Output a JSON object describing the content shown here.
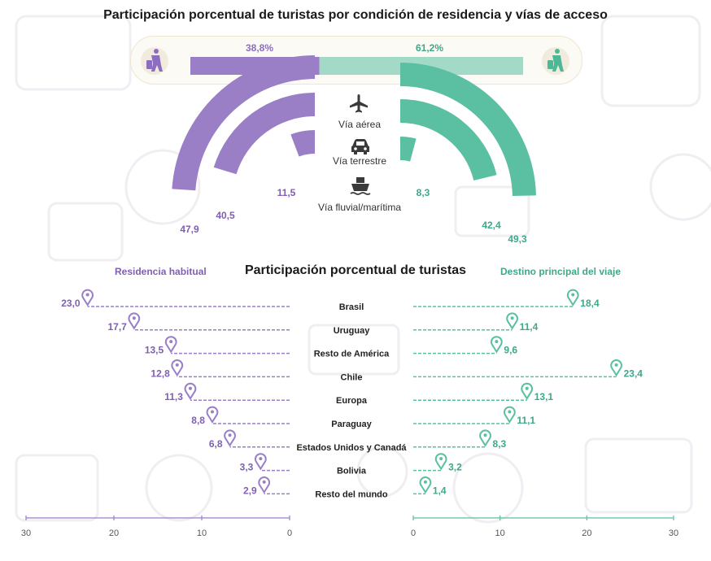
{
  "title": "Participación porcentual de turistas por condición de residencia y vías de acceso",
  "colors": {
    "purple": "#9a7fc6",
    "green": "#5bbfa1",
    "purple_text": "#7e5fb2",
    "green_text": "#3fa78a"
  },
  "residence_split": {
    "left": "38,8%",
    "right": "61,2%",
    "left_value": 38.8,
    "right_value": 61.2
  },
  "access": {
    "labels": [
      "Vía aérea",
      "Vía terrestre",
      "Vía fluvial/marítima"
    ],
    "icons": [
      "airplane-icon",
      "car-icon",
      "ship-icon"
    ],
    "left": {
      "values": [
        47.9,
        40.5,
        11.5
      ],
      "labels": [
        "47,9",
        "40,5",
        "11,5"
      ]
    },
    "right": {
      "values": [
        49.3,
        42.4,
        8.3
      ],
      "labels": [
        "49,3",
        "42,4",
        "8,3"
      ]
    }
  },
  "section2_title": "Participación porcentual de turistas",
  "left_series_label": "Residencia habitual",
  "right_series_label": "Destino principal del viaje",
  "chart_data": [
    {
      "type": "bar",
      "title": "Participación porcentual de turistas por condición de residencia y vías de acceso",
      "categories": [
        "Residencia habitual",
        "Destino principal del viaje"
      ],
      "values": [
        38.8,
        61.2
      ],
      "value_labels": [
        "38,8%",
        "61,2%"
      ]
    },
    {
      "type": "pie",
      "categories": [
        "Vía aérea",
        "Vía terrestre",
        "Vía fluvial/marítima"
      ],
      "series": [
        {
          "values": [
            47.9,
            40.5,
            11.5
          ],
          "labels": [
            "47,9",
            "40,5",
            "11,5"
          ]
        },
        {
          "values": [
            49.3,
            42.4,
            8.3
          ],
          "labels": [
            "49,3",
            "42,4",
            "8,3"
          ]
        }
      ]
    },
    {
      "type": "bar",
      "title": "Participación porcentual de turistas",
      "categories": [
        "Brasil",
        "Uruguay",
        "Resto de América",
        "Chile",
        "Europa",
        "Paraguay",
        "Estados Unidos y Canadá",
        "Bolivia",
        "Resto del mundo"
      ],
      "series": [
        {
          "name": "Residencia habitual",
          "values": [
            23.0,
            17.7,
            13.5,
            12.8,
            11.3,
            8.8,
            6.8,
            3.3,
            2.9
          ],
          "labels": [
            "23,0",
            "17,7",
            "13,5",
            "12,8",
            "11,3",
            "8,8",
            "6,8",
            "3,3",
            "2,9"
          ]
        },
        {
          "name": "Destino principal del viaje",
          "values": [
            18.4,
            11.4,
            9.6,
            23.4,
            13.1,
            11.1,
            8.3,
            3.2,
            1.4
          ],
          "labels": [
            "18,4",
            "11,4",
            "9,6",
            "23,4",
            "13,1",
            "11,1",
            "8,3",
            "3,2",
            "1,4"
          ]
        }
      ],
      "xlim": [
        0,
        30
      ],
      "xticks_left": [
        "30",
        "20",
        "10",
        "0"
      ],
      "xticks_right": [
        "0",
        "10",
        "20",
        "30"
      ],
      "grid": false
    }
  ]
}
